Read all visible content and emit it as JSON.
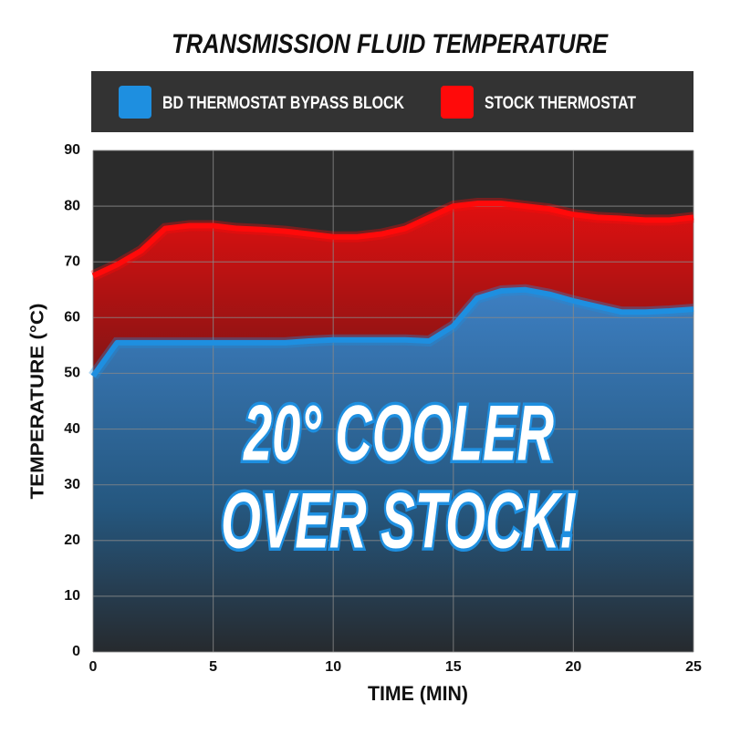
{
  "chart_data": {
    "type": "area",
    "title": "TRANSMISSION FLUID TEMPERATURE",
    "x_label": "TIME (MIN)",
    "y_label": "TEMPERATURE (°C)",
    "annotation": [
      "20° COOLER",
      "OVER STOCK!"
    ],
    "x": [
      0,
      1,
      2,
      3,
      4,
      5,
      6,
      7,
      8,
      9,
      10,
      11,
      12,
      13,
      14,
      15,
      16,
      17,
      18,
      19,
      20,
      21,
      22,
      23,
      24,
      25
    ],
    "series": [
      {
        "name": "BD THERMOSTAT BYPASS BLOCK",
        "color": "#1e8fe0",
        "values": [
          49.5,
          55.5,
          55.5,
          55.5,
          55.5,
          55.5,
          55.5,
          55.5,
          55.5,
          55.8,
          56,
          56,
          56,
          56,
          55.8,
          58.5,
          63.5,
          64.8,
          65,
          64.2,
          63,
          62,
          61,
          61,
          61.2,
          61.5
        ]
      },
      {
        "name": "STOCK THERMOSTAT",
        "color": "#ff0a0a",
        "values": [
          67.5,
          69.5,
          72,
          76,
          76.5,
          76.5,
          76,
          75.8,
          75.5,
          75,
          74.5,
          74.5,
          75,
          76,
          78,
          80,
          80.5,
          80.5,
          80,
          79.5,
          78.5,
          78,
          77.8,
          77.5,
          77.5,
          78
        ]
      }
    ],
    "xlim": [
      0,
      25
    ],
    "xticks": [
      0,
      5,
      10,
      15,
      20,
      25
    ],
    "ylim": [
      0,
      90
    ],
    "yticks": [
      0,
      10,
      20,
      30,
      40,
      50,
      60,
      70,
      80,
      90
    ],
    "grid": true
  }
}
